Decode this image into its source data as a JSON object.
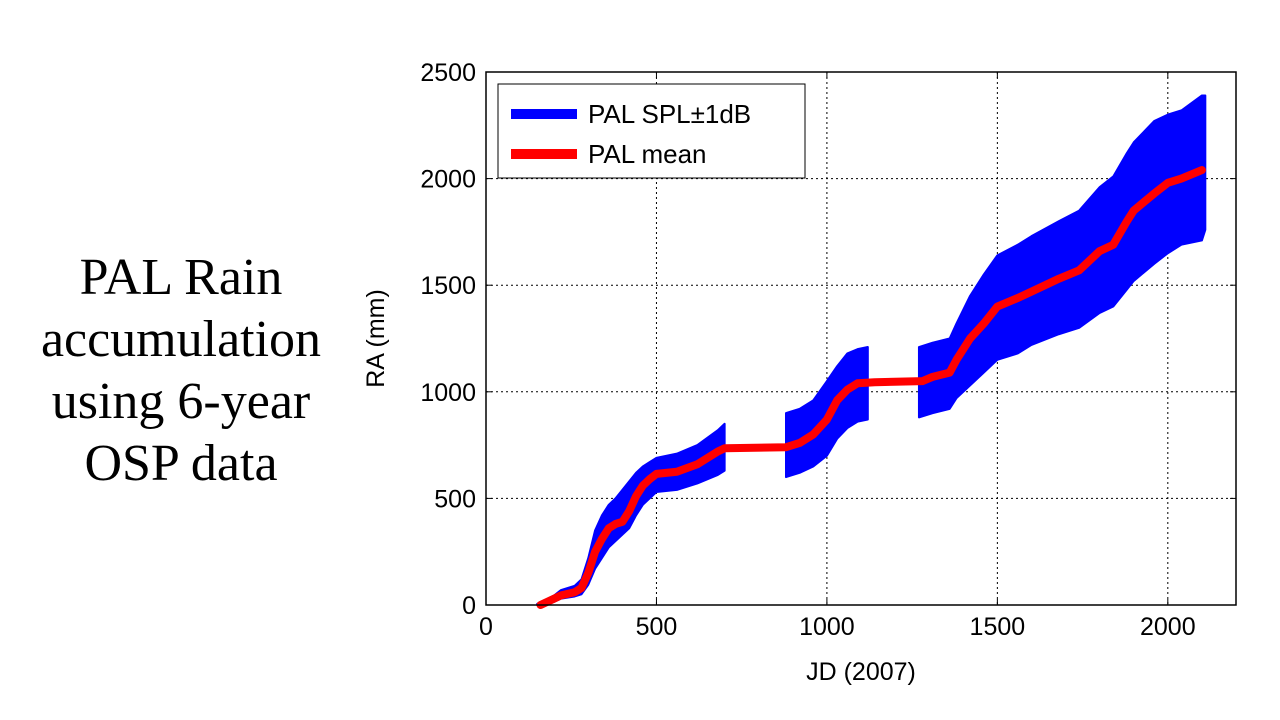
{
  "slide": {
    "title_lines": [
      "PAL Rain",
      "accumulation",
      "using 6-year",
      "OSP data"
    ]
  },
  "chart_data": {
    "type": "area",
    "title": "",
    "xlabel": "JD (2007)",
    "ylabel": "RA (mm)",
    "xlim": [
      0,
      2200
    ],
    "ylim": [
      0,
      2500
    ],
    "xticks": [
      0,
      500,
      1000,
      1500,
      2000
    ],
    "yticks": [
      0,
      500,
      1000,
      1500,
      2000,
      2500
    ],
    "grid": true,
    "legend": {
      "position": "top-left",
      "entries": [
        {
          "label": "PAL SPL±1dB",
          "color": "#0000ff"
        },
        {
          "label": "PAL mean",
          "color": "#ff0000"
        }
      ]
    },
    "series": [
      {
        "name": "PAL mean",
        "color": "#ff0000",
        "segments": [
          [
            [
              160,
              0
            ],
            [
              200,
              30
            ],
            [
              220,
              45
            ],
            [
              260,
              60
            ],
            [
              280,
              80
            ],
            [
              300,
              150
            ],
            [
              320,
              250
            ],
            [
              340,
              310
            ],
            [
              360,
              360
            ],
            [
              380,
              380
            ],
            [
              400,
              390
            ],
            [
              420,
              440
            ],
            [
              440,
              510
            ],
            [
              460,
              560
            ],
            [
              480,
              590
            ],
            [
              500,
              615
            ],
            [
              560,
              625
            ],
            [
              620,
              660
            ],
            [
              680,
              720
            ],
            [
              700,
              735
            ],
            [
              880,
              740
            ],
            [
              920,
              760
            ],
            [
              960,
              800
            ],
            [
              1000,
              870
            ],
            [
              1030,
              960
            ],
            [
              1060,
              1010
            ],
            [
              1090,
              1040
            ],
            [
              1140,
              1045
            ],
            [
              1280,
              1050
            ],
            [
              1310,
              1070
            ],
            [
              1360,
              1090
            ],
            [
              1380,
              1150
            ],
            [
              1420,
              1250
            ],
            [
              1460,
              1320
            ],
            [
              1500,
              1400
            ],
            [
              1560,
              1440
            ],
            [
              1600,
              1470
            ],
            [
              1680,
              1530
            ],
            [
              1740,
              1570
            ],
            [
              1800,
              1660
            ],
            [
              1840,
              1690
            ],
            [
              1880,
              1800
            ],
            [
              1900,
              1850
            ],
            [
              1960,
              1930
            ],
            [
              2000,
              1980
            ],
            [
              2040,
              2000
            ],
            [
              2100,
              2040
            ]
          ]
        ]
      },
      {
        "name": "PAL SPL±1dB",
        "color": "#0000ff",
        "segments": [
          {
            "x": [
              150,
              200,
              220,
              260,
              280,
              300,
              320,
              340,
              360,
              380,
              400,
              420,
              440,
              460,
              480,
              500,
              560,
              620,
              680,
              700
            ],
            "upper": [
              5,
              45,
              70,
              90,
              120,
              220,
              350,
              420,
              470,
              500,
              540,
              580,
              620,
              650,
              670,
              690,
              710,
              750,
              820,
              850
            ],
            "lower": [
              0,
              15,
              30,
              40,
              50,
              95,
              170,
              220,
              270,
              300,
              330,
              360,
              420,
              470,
              500,
              530,
              540,
              570,
              610,
              630
            ]
          },
          {
            "x": [
              880,
              920,
              960,
              1000,
              1030,
              1060,
              1090,
              1120
            ],
            "upper": [
              900,
              920,
              960,
              1050,
              1120,
              1180,
              1200,
              1210
            ],
            "lower": [
              600,
              620,
              650,
              700,
              780,
              830,
              860,
              870
            ]
          },
          {
            "x": [
              1270,
              1310,
              1360,
              1380,
              1420,
              1460,
              1500,
              1560,
              1600,
              1680,
              1740,
              1800,
              1840,
              1880,
              1900,
              1960,
              2000,
              2040,
              2100,
              2110
            ],
            "upper": [
              1210,
              1230,
              1250,
              1320,
              1450,
              1550,
              1640,
              1690,
              1730,
              1800,
              1850,
              1960,
              2010,
              2120,
              2170,
              2270,
              2300,
              2320,
              2390,
              2390
            ],
            "lower": [
              880,
              900,
              920,
              970,
              1030,
              1090,
              1150,
              1180,
              1220,
              1270,
              1300,
              1370,
              1400,
              1480,
              1520,
              1600,
              1650,
              1690,
              1710,
              1760
            ]
          }
        ]
      }
    ]
  }
}
